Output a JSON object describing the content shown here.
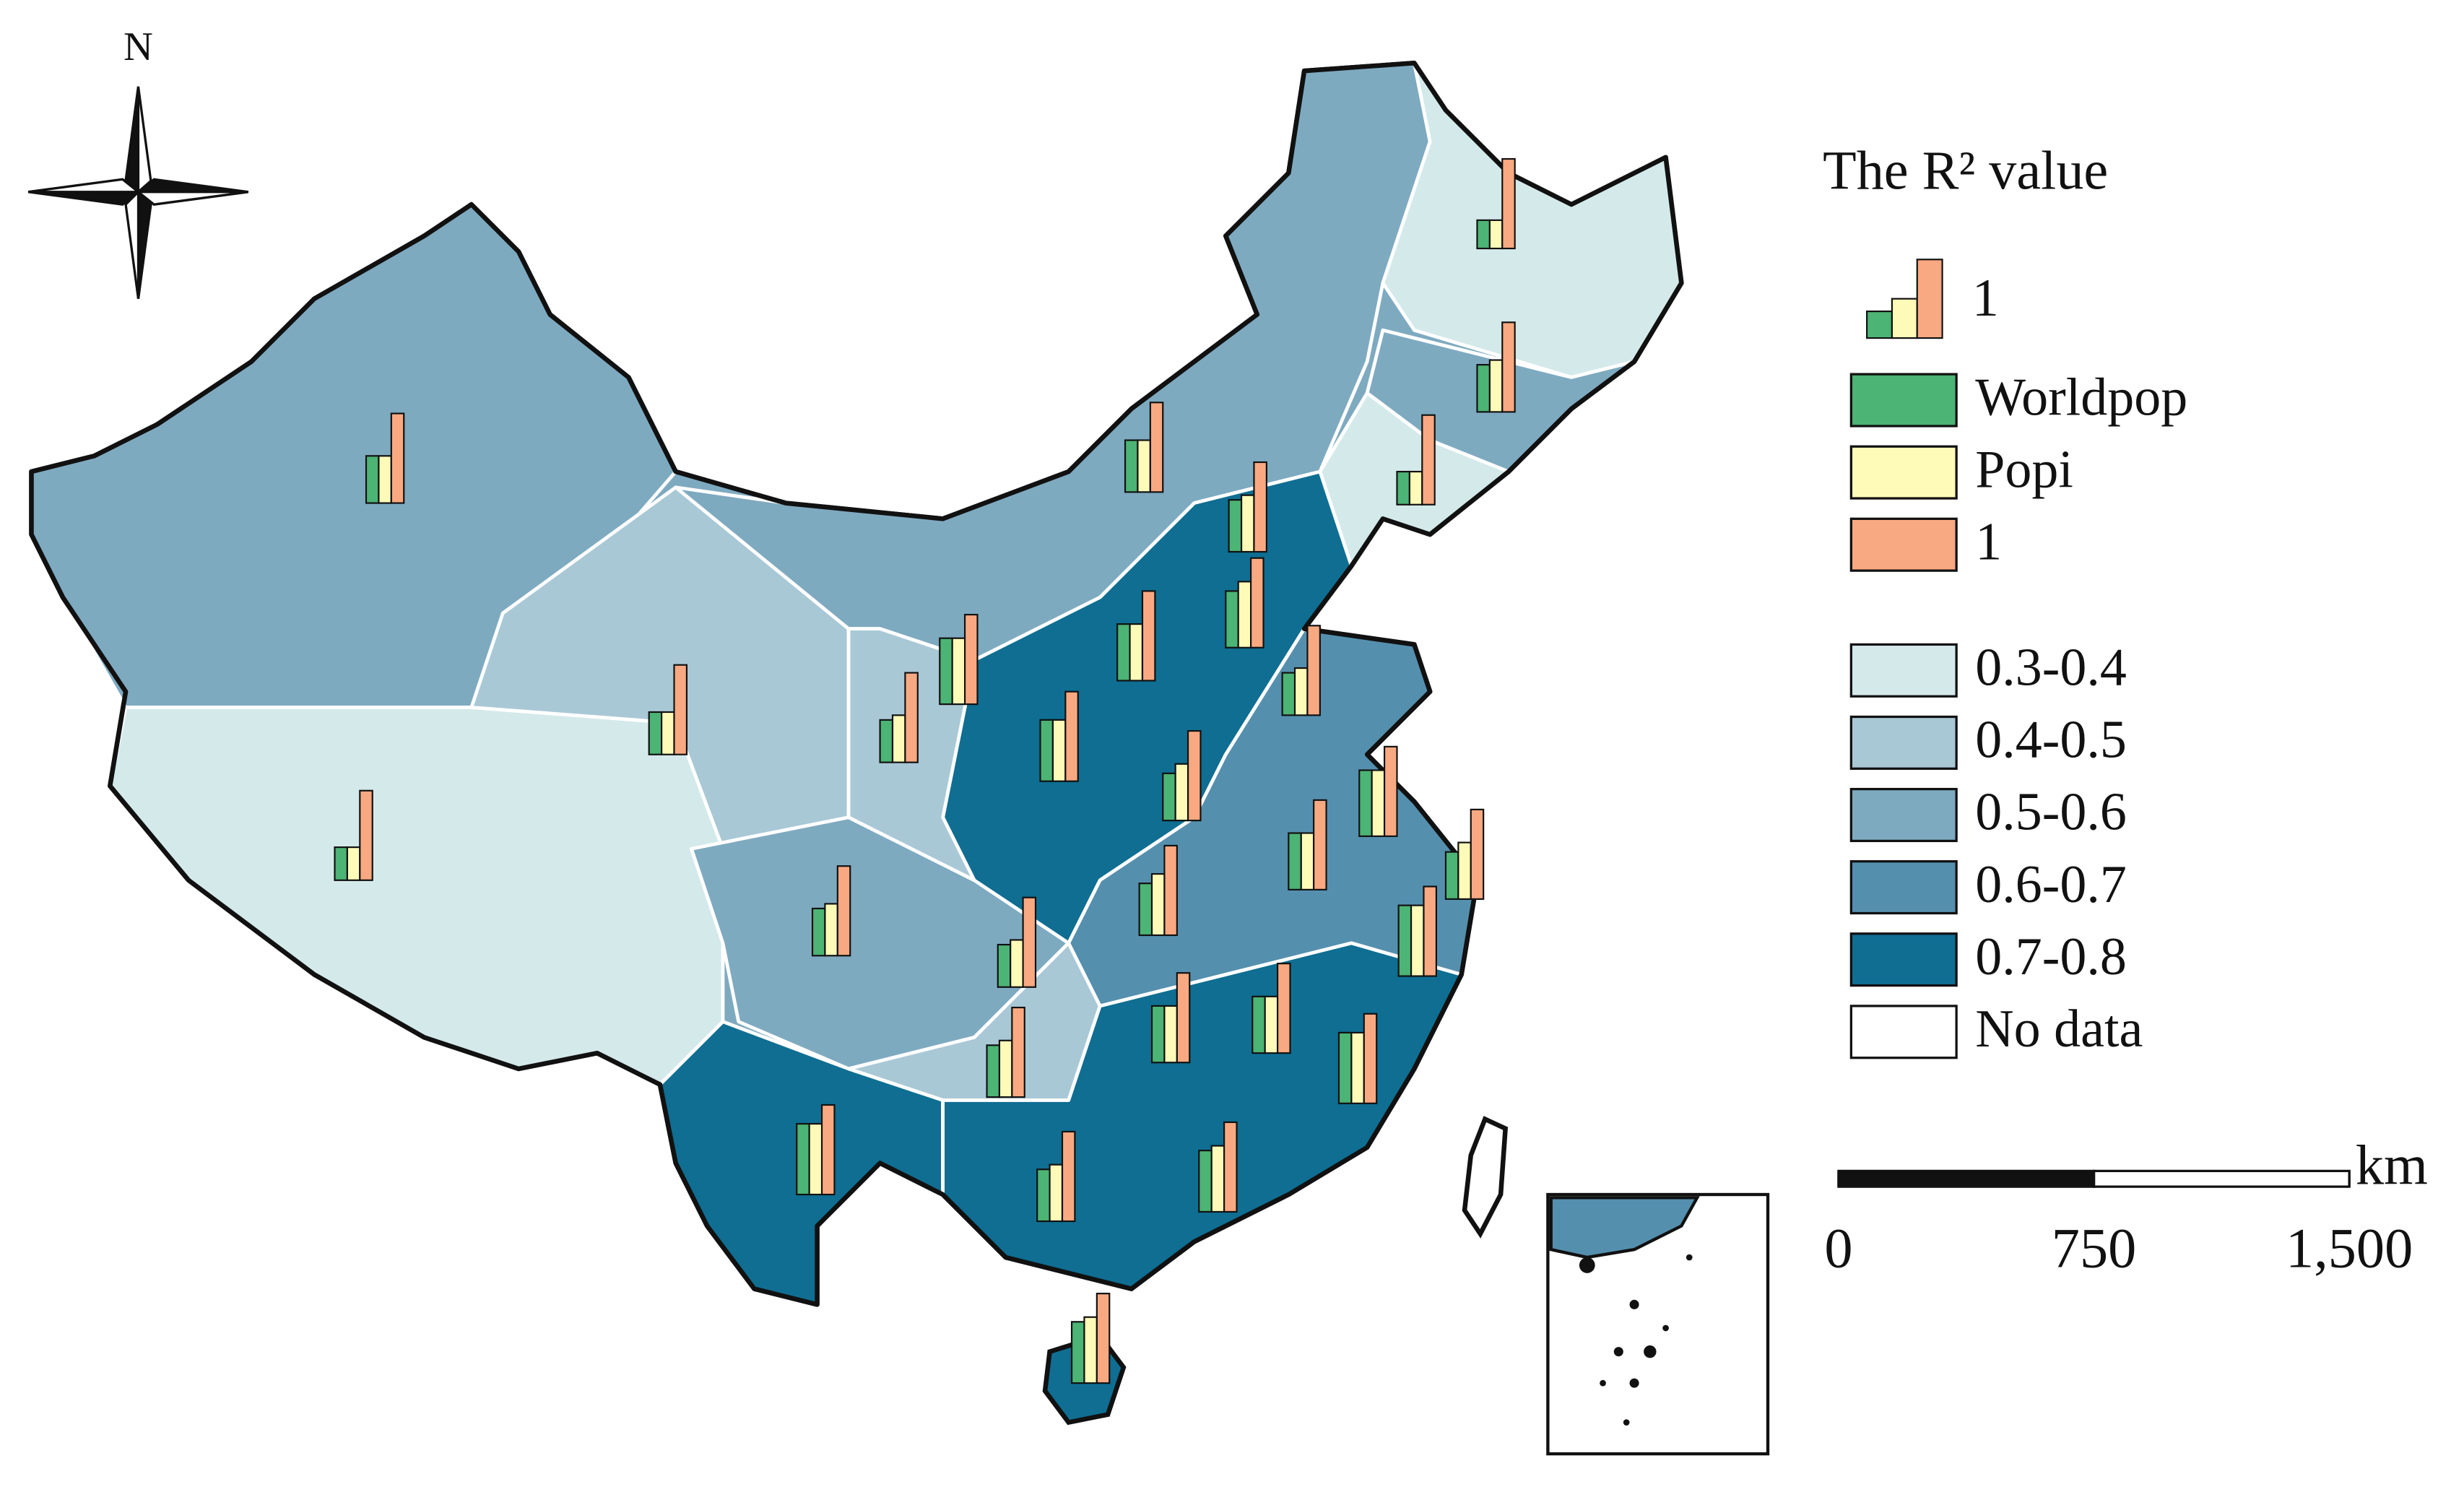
{
  "compass": {
    "label": "N"
  },
  "legend": {
    "title": "The R² value",
    "symbol_label": "1",
    "series": [
      {
        "name": "Worldpop",
        "color": "#4cb474"
      },
      {
        "name": "Popi",
        "color": "#fefbb8"
      },
      {
        "name": "1",
        "color": "#f9a981"
      }
    ],
    "classes": [
      {
        "label": "0.3-0.4",
        "color": "#d4e9ea"
      },
      {
        "label": "0.4-0.5",
        "color": "#a9c8d6"
      },
      {
        "label": "0.5-0.6",
        "color": "#7eaac0"
      },
      {
        "label": "0.6-0.7",
        "color": "#558fae"
      },
      {
        "label": "0.7-0.8",
        "color": "#0f6e92"
      },
      {
        "label": "No data",
        "color": "#ffffff"
      }
    ]
  },
  "scale_bar": {
    "unit": "km",
    "xlim": [
      0,
      1500
    ],
    "ticks": [
      0,
      750,
      {
        "value": 1500,
        "label": "1,500"
      }
    ]
  },
  "bars": [
    [
      0.5,
      0.5,
      0.95
    ],
    [
      0.35,
      0.35,
      0.95
    ],
    [
      0.45,
      0.45,
      0.95
    ],
    [
      0.45,
      0.5,
      0.95
    ],
    [
      0.7,
      0.7,
      0.95
    ],
    [
      0.55,
      0.55,
      0.95
    ],
    [
      0.3,
      0.3,
      0.95
    ],
    [
      0.5,
      0.55,
      0.95
    ],
    [
      0.35,
      0.35,
      0.95
    ],
    [
      0.55,
      0.6,
      0.95
    ],
    [
      0.6,
      0.7,
      0.95
    ],
    [
      0.6,
      0.6,
      0.95
    ],
    [
      0.45,
      0.5,
      0.95
    ],
    [
      0.65,
      0.65,
      0.95
    ],
    [
      0.5,
      0.6,
      0.95
    ],
    [
      0.7,
      0.7,
      0.95
    ],
    [
      0.5,
      0.6,
      0.95
    ],
    [
      0.6,
      0.6,
      0.95
    ],
    [
      0.55,
      0.65,
      0.95
    ],
    [
      0.75,
      0.75,
      0.95
    ],
    [
      0.5,
      0.55,
      0.95
    ],
    [
      0.45,
      0.5,
      0.95
    ],
    [
      0.6,
      0.6,
      0.95
    ],
    [
      0.6,
      0.6,
      0.95
    ],
    [
      0.75,
      0.75,
      0.95
    ],
    [
      0.55,
      0.6,
      0.95
    ],
    [
      0.75,
      0.75,
      0.95
    ],
    [
      0.55,
      0.6,
      0.95
    ],
    [
      0.65,
      0.7,
      0.95
    ],
    [
      0.65,
      0.7,
      0.95
    ]
  ]
}
